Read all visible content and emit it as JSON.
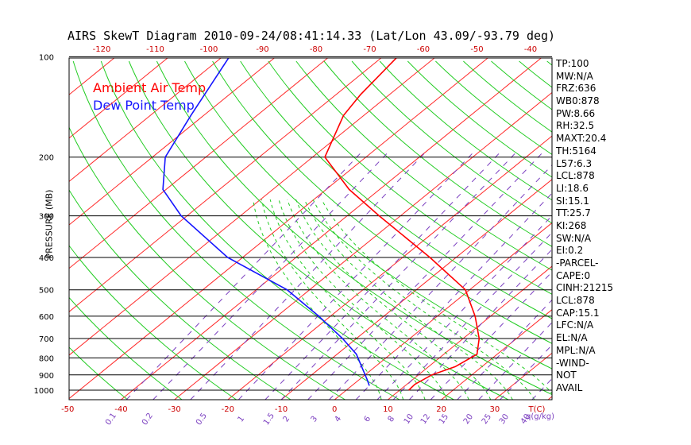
{
  "title": "AIRS SkewT Diagram 2010-09-24/08:41:14.33 (Lat/Lon 43.09/-93.79 deg)",
  "legend": {
    "air": "Ambient Air Temp",
    "dew": "Dew Point Temp"
  },
  "colors": {
    "air": "#ff0000",
    "dew": "#1515ff",
    "dry_adiabat": "#ff2a2a",
    "moist_adiabat": "#22cc22",
    "mixing_ratio": "#7b3fc0",
    "frame": "#000000"
  },
  "chart_data": {
    "type": "skewt",
    "ylabel": "PRESSURE (MB)",
    "pressure_ticks": [
      100,
      200,
      300,
      400,
      500,
      600,
      700,
      800,
      900,
      1000
    ],
    "pressure_range": [
      100,
      1050
    ],
    "bottom_temp_ticks": [
      "-50",
      "-40",
      "-30",
      "-20",
      "-10",
      "0",
      "10",
      "20",
      "30"
    ],
    "bottom_unit": "T(C)",
    "top_temp_ticks": [
      "-120",
      "-110",
      "-100",
      "-90",
      "-80",
      "-70",
      "-60",
      "-50",
      "-40"
    ],
    "mixing_ratio_ticks": [
      "0.1",
      "0.2",
      "0.5",
      "1",
      "1.5",
      "2",
      "3",
      "4",
      "6",
      "8",
      "10",
      "12",
      "15",
      "20",
      "25",
      "30",
      "40"
    ],
    "mixing_ratio_unit": "q(g/kg)",
    "series": [
      {
        "name": "Ambient Air Temp",
        "points": [
          {
            "p": 1000,
            "t": 11.7
          },
          {
            "p": 960,
            "t": 11.5
          },
          {
            "p": 900,
            "t": 12.5
          },
          {
            "p": 850,
            "t": 15.0
          },
          {
            "p": 780,
            "t": 16.2
          },
          {
            "p": 700,
            "t": 13.0
          },
          {
            "p": 600,
            "t": 7.1
          },
          {
            "p": 500,
            "t": -0.8
          },
          {
            "p": 400,
            "t": -14.9
          },
          {
            "p": 300,
            "t": -34.0
          },
          {
            "p": 250,
            "t": -45.7
          },
          {
            "p": 200,
            "t": -57.7
          },
          {
            "p": 150,
            "t": -63.8
          },
          {
            "p": 130,
            "t": -65.4
          },
          {
            "p": 100,
            "t": -67.2
          }
        ]
      },
      {
        "name": "Dew Point Temp",
        "points": [
          {
            "p": 970,
            "t": 3.3
          },
          {
            "p": 930,
            "t": 1.5
          },
          {
            "p": 870,
            "t": -1.5
          },
          {
            "p": 780,
            "t": -6.4
          },
          {
            "p": 700,
            "t": -12.6
          },
          {
            "p": 600,
            "t": -22.2
          },
          {
            "p": 500,
            "t": -34.2
          },
          {
            "p": 400,
            "t": -52.8
          },
          {
            "p": 300,
            "t": -71.1
          },
          {
            "p": 250,
            "t": -80.6
          },
          {
            "p": 200,
            "t": -87.6
          },
          {
            "p": 150,
            "t": -92.4
          },
          {
            "p": 100,
            "t": -98.7
          }
        ]
      }
    ]
  },
  "stats": [
    "TP:100",
    "MW:N/A",
    "FRZ:636",
    "WB0:878",
    "PW:8.66",
    "RH:32.5",
    "MAXT:20.4",
    "TH:5164",
    "L57:6.3",
    "LCL:878",
    "LI:18.6",
    "SI:15.1",
    "TT:25.7",
    "KI:268",
    "SW:N/A",
    "EI:0.2",
    "-PARCEL-",
    "CAPE:0",
    "CINH:21215",
    "LCL:878",
    "CAP:15.1",
    "LFC:N/A",
    "EL:N/A",
    "MPL:N/A",
    "-WIND-",
    " NOT",
    " AVAIL"
  ]
}
